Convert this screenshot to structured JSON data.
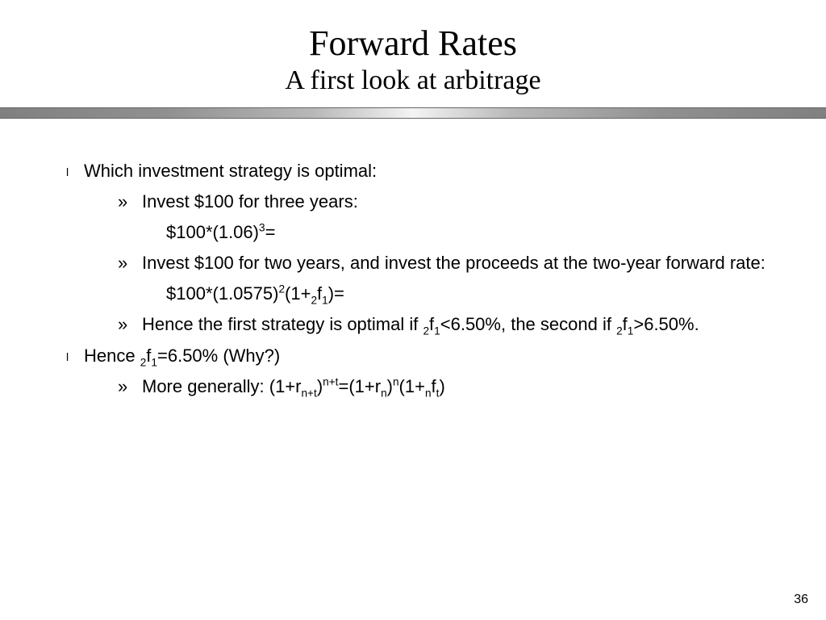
{
  "title": {
    "main": "Forward Rates",
    "sub": "A first look at arbitrage"
  },
  "content": {
    "p1": "Which investment strategy is optimal:",
    "p1a": "Invest $100 for three years:",
    "p1a_formula": "$100*(1.06)",
    "p1a_sup": "3",
    "p1a_tail": "=",
    "p1b": "Invest $100 for two years, and invest the proceeds at the two-year forward rate:",
    "p1b_f1": "$100*(1.0575)",
    "p1b_sup1": "2",
    "p1b_f2": "(1+",
    "p1b_sub1": "2",
    "p1b_f3": "f",
    "p1b_sub2": "1",
    "p1b_f4": ")=",
    "p1c_a": "Hence the first strategy is optimal if ",
    "p1c_sub1": "2",
    "p1c_f": "f",
    "p1c_sub2": "1",
    "p1c_b": "<6.50%, the second if ",
    "p1c_sub3": "2",
    "p1c_f2": "f",
    "p1c_sub4": "1",
    "p1c_c": ">6.50%.",
    "p2_a": "Hence ",
    "p2_sub1": "2",
    "p2_f": "f",
    "p2_sub2": "1",
    "p2_b": "=6.50% (Why?)",
    "p2a_a": "More generally: (1+r",
    "p2a_sub1": "n+t",
    "p2a_b": ")",
    "p2a_sup1": "n+t",
    "p2a_c": "=(1+r",
    "p2a_sub2": "n",
    "p2a_d": ")",
    "p2a_sup2": "n",
    "p2a_e": "(1+",
    "p2a_sub3": "n",
    "p2a_f": "f",
    "p2a_sub4": "t",
    "p2a_g": ")"
  },
  "page_number": "36",
  "style": {
    "background": "#ffffff",
    "text_color": "#000000",
    "title_font": "Palatino Linotype, serif",
    "title_main_size_pt": 33,
    "title_sub_size_pt": 26,
    "body_font": "Arial, sans-serif",
    "body_size_pt": 17,
    "divider_gradient": [
      "#808080",
      "#f4f4f4",
      "#808080"
    ],
    "bullet_l1_glyph": "l",
    "bullet_l2_glyph": "»"
  }
}
